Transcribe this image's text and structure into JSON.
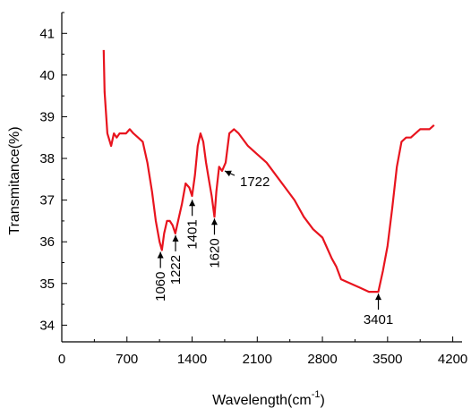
{
  "chart_data": {
    "type": "line",
    "title": "",
    "xlabel_main": "Wavelength(cm",
    "xlabel_sup": "-1",
    "xlabel_close": ")",
    "ylabel": "Transmitance(%)",
    "xlim": [
      0,
      4300
    ],
    "ylim": [
      33.6,
      41.5
    ],
    "xticks": [
      0,
      700,
      1400,
      2100,
      2800,
      3500,
      4200
    ],
    "yticks": [
      34,
      35,
      36,
      37,
      38,
      39,
      40,
      41
    ],
    "grid": false,
    "line_color": "#e8141e",
    "series": [
      {
        "x": [
          450,
          460,
          490,
          530,
          560,
          590,
          620,
          650,
          690,
          730,
          770,
          820,
          870,
          920,
          970,
          1010,
          1050,
          1075,
          1100,
          1130,
          1160,
          1190,
          1220,
          1250,
          1290,
          1330,
          1370,
          1400,
          1430,
          1460,
          1490,
          1520,
          1550,
          1580,
          1610,
          1640,
          1660,
          1690,
          1722,
          1760,
          1800,
          1850,
          1900,
          2000,
          2100,
          2200,
          2300,
          2400,
          2500,
          2600,
          2700,
          2800,
          2900,
          2950,
          3000,
          3100,
          3200,
          3300,
          3350,
          3401,
          3450,
          3500,
          3550,
          3600,
          3650,
          3700,
          3750,
          3800,
          3850,
          3900,
          3950,
          4000
        ],
        "y": [
          40.6,
          39.6,
          38.6,
          38.3,
          38.6,
          38.5,
          38.6,
          38.6,
          38.6,
          38.7,
          38.6,
          38.5,
          38.4,
          37.9,
          37.2,
          36.5,
          36.0,
          35.8,
          36.2,
          36.5,
          36.5,
          36.4,
          36.2,
          36.5,
          36.9,
          37.4,
          37.3,
          37.1,
          37.6,
          38.3,
          38.6,
          38.4,
          37.9,
          37.5,
          37.1,
          36.6,
          37.2,
          37.8,
          37.7,
          37.9,
          38.6,
          38.7,
          38.6,
          38.3,
          38.1,
          37.9,
          37.6,
          37.3,
          37.0,
          36.6,
          36.3,
          36.1,
          35.6,
          35.4,
          35.1,
          35.0,
          34.9,
          34.8,
          34.8,
          34.8,
          35.3,
          35.9,
          36.8,
          37.8,
          38.4,
          38.5,
          38.5,
          38.6,
          38.7,
          38.7,
          38.7,
          38.8
        ]
      }
    ],
    "annotations": [
      {
        "label": "1060",
        "x": 1060,
        "y": 35.8,
        "orientation": "vertical",
        "side": "below"
      },
      {
        "label": "1222",
        "x": 1222,
        "y": 36.2,
        "orientation": "vertical",
        "side": "below"
      },
      {
        "label": "1401",
        "x": 1401,
        "y": 37.05,
        "orientation": "vertical",
        "side": "below"
      },
      {
        "label": "1620",
        "x": 1640,
        "y": 36.6,
        "orientation": "vertical",
        "side": "below"
      },
      {
        "label": "1722",
        "x": 1722,
        "y": 37.7,
        "orientation": "horizontal",
        "side": "right"
      },
      {
        "label": "3401",
        "x": 3401,
        "y": 34.8,
        "orientation": "horizontal",
        "side": "below"
      }
    ]
  }
}
